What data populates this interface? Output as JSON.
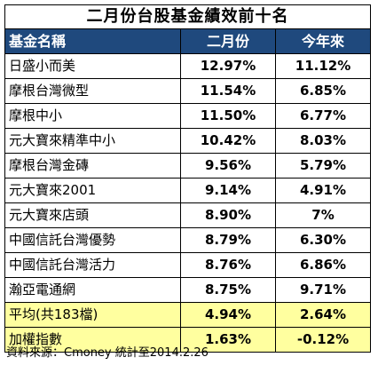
{
  "title": "二月份台股基金績效前十名",
  "headers": {
    "name": "基金名稱",
    "feb": "二月份",
    "ytd": "今年來"
  },
  "rows": [
    {
      "name": "日盛小而美",
      "feb": "12.97%",
      "ytd": "11.12%"
    },
    {
      "name": "摩根台灣微型",
      "feb": "11.54%",
      "ytd": "6.85%"
    },
    {
      "name": "摩根中小",
      "feb": "11.50%",
      "ytd": "6.77%"
    },
    {
      "name": "元大寶來精準中小",
      "feb": "10.42%",
      "ytd": "8.03%"
    },
    {
      "name": "摩根台灣金磚",
      "feb": "9.56%",
      "ytd": "5.79%"
    },
    {
      "name": "元大寶來2001",
      "feb": "9.14%",
      "ytd": "4.91%"
    },
    {
      "name": "元大寶來店頭",
      "feb": "8.90%",
      "ytd": "7%"
    },
    {
      "name": "中國信託台灣優勢",
      "feb": "8.79%",
      "ytd": "6.30%"
    },
    {
      "name": "中國信託台灣活力",
      "feb": "8.76%",
      "ytd": "6.86%"
    },
    {
      "name": "瀚亞電通網",
      "feb": "8.75%",
      "ytd": "9.71%"
    }
  ],
  "average": {
    "name": "平均(共183檔)",
    "feb": "4.94%",
    "ytd": "2.64%"
  },
  "index": {
    "name": "加權指數",
    "feb": "1.63%",
    "ytd": "-0.12%"
  },
  "source": "資料來源：Cmoney 統計至2014.2.26",
  "colors": {
    "header_bg": "#1f497d",
    "summary_bg": "#ffff9f"
  }
}
